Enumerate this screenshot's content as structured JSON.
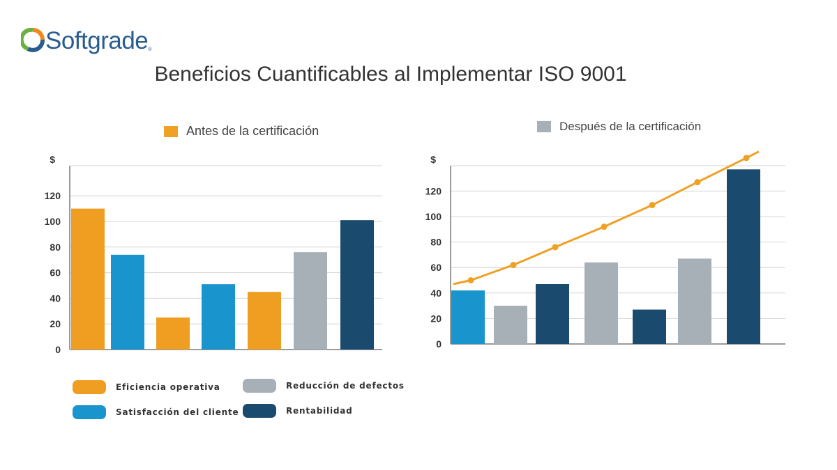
{
  "brand": {
    "name": "Softgrade",
    "reg": "®",
    "colors": {
      "orange": "#F08A1E",
      "green": "#6BB13D",
      "blue": "#2A5D8F"
    }
  },
  "title": "Beneficios Cuantificables al Implementar ISO 9001",
  "colors": {
    "eficiencia": "#EF9E22",
    "satisfaccion": "#1A94CC",
    "reduccion": "#A7AFB7",
    "rentabilidad": "#1B4A6F",
    "trend": "#EFA126"
  },
  "legend": [
    {
      "key": "eficiencia",
      "label": "Eficiencia operativa"
    },
    {
      "key": "reduccion",
      "label": "Reducción de defectos"
    },
    {
      "key": "satisfaccion",
      "label": "Satisfacción del cliente"
    },
    {
      "key": "rentabilidad",
      "label": "Rentabilidad"
    }
  ],
  "chart_data": [
    {
      "type": "bar",
      "series_label": "Antes de la certificación",
      "series_color": "#EFA126",
      "ylabel": "$",
      "ylim": [
        0,
        140
      ],
      "yticks": [
        0,
        20,
        40,
        60,
        80,
        100,
        120
      ],
      "grid": true,
      "bars": [
        {
          "category": "eficiencia",
          "value": 110
        },
        {
          "category": "satisfaccion",
          "value": 74
        },
        {
          "category": "eficiencia",
          "value": 25
        },
        {
          "category": "satisfaccion",
          "value": 51
        },
        {
          "category": "eficiencia",
          "value": 45
        },
        {
          "category": "reduccion",
          "value": 76
        },
        {
          "category": "rentabilidad",
          "value": 101
        }
      ]
    },
    {
      "type": "bar",
      "series_label": "Después de la certificación",
      "series_color": "#A7AFB7",
      "ylabel": "$",
      "ylim": [
        0,
        140
      ],
      "yticks": [
        0,
        20,
        40,
        60,
        80,
        100,
        120
      ],
      "grid": true,
      "bars": [
        {
          "category": "satisfaccion",
          "value": 42
        },
        {
          "category": "reduccion",
          "value": 30
        },
        {
          "category": "rentabilidad",
          "value": 47
        },
        {
          "category": "reduccion",
          "value": 64
        },
        {
          "category": "rentabilidad",
          "value": 27
        },
        {
          "category": "reduccion",
          "value": 67
        },
        {
          "category": "rentabilidad",
          "value": 137
        }
      ],
      "trend_line": {
        "type": "line",
        "values": [
          50,
          62,
          76,
          92,
          109,
          127,
          146
        ],
        "start": 47,
        "end": 151
      }
    }
  ]
}
